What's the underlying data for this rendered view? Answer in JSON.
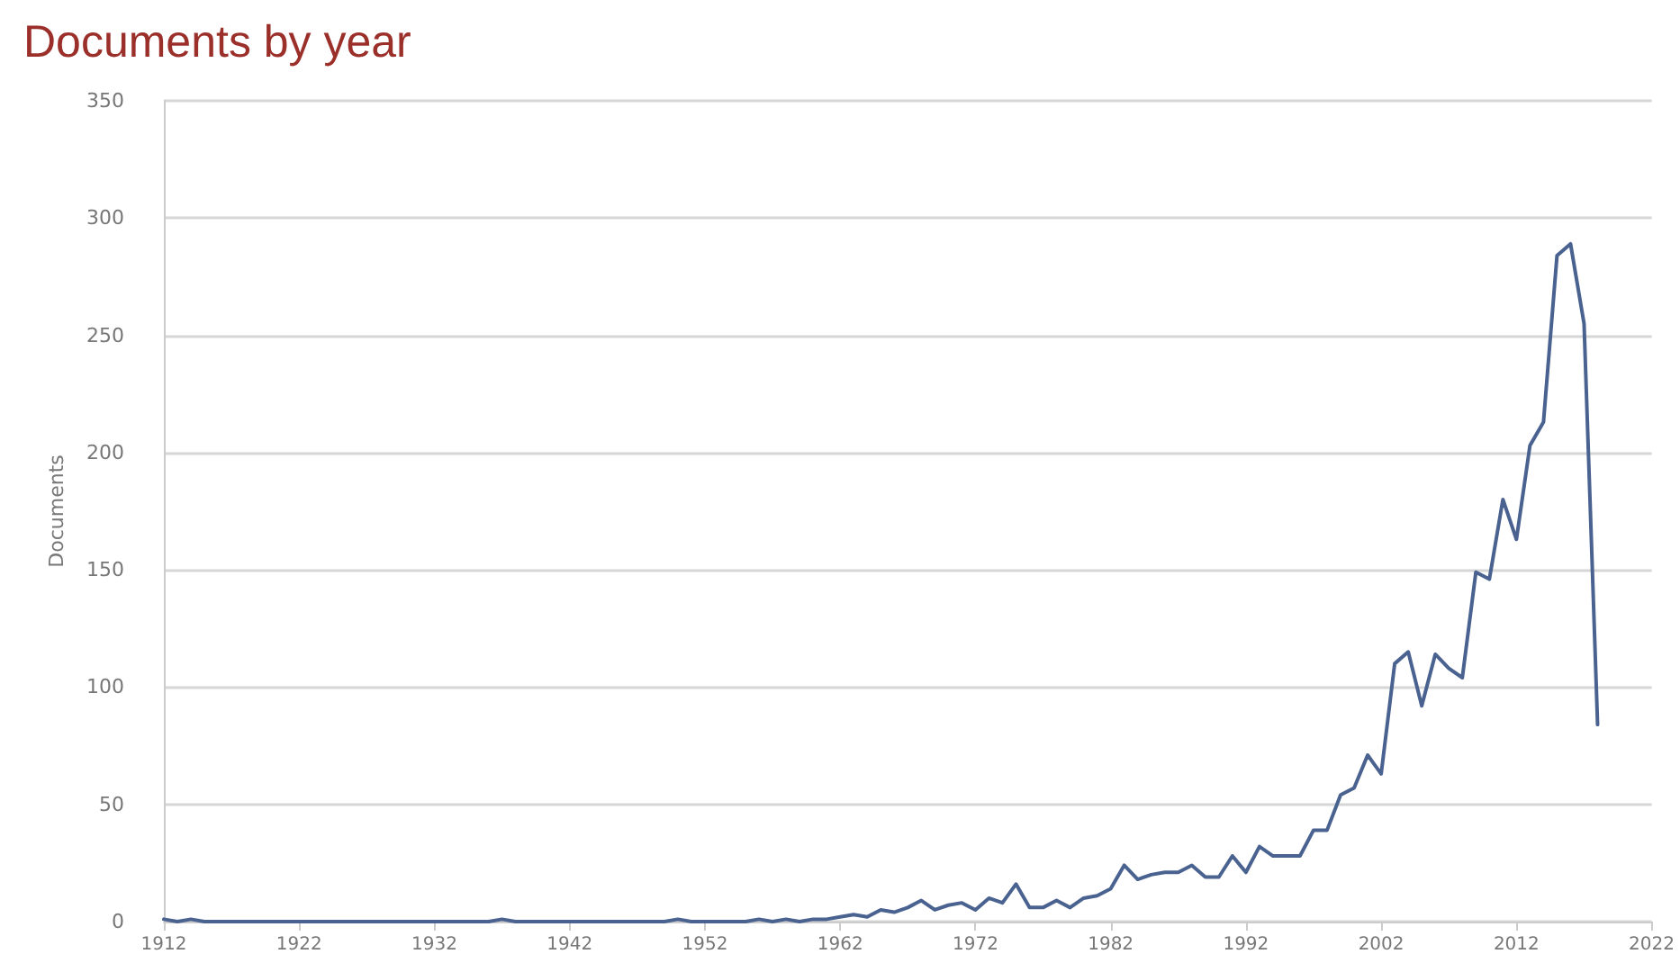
{
  "chart_data": {
    "type": "line",
    "title": "Documents by year",
    "ylabel": "Documents",
    "x": [
      1912,
      1913,
      1914,
      1915,
      1916,
      1917,
      1918,
      1919,
      1920,
      1921,
      1922,
      1923,
      1924,
      1925,
      1926,
      1927,
      1928,
      1929,
      1930,
      1931,
      1932,
      1933,
      1934,
      1935,
      1936,
      1937,
      1938,
      1939,
      1940,
      1941,
      1942,
      1943,
      1944,
      1945,
      1946,
      1947,
      1948,
      1949,
      1950,
      1951,
      1952,
      1953,
      1954,
      1955,
      1956,
      1957,
      1958,
      1959,
      1960,
      1961,
      1962,
      1963,
      1964,
      1965,
      1966,
      1967,
      1968,
      1969,
      1970,
      1971,
      1972,
      1973,
      1974,
      1975,
      1976,
      1977,
      1978,
      1979,
      1980,
      1981,
      1982,
      1983,
      1984,
      1985,
      1986,
      1987,
      1988,
      1989,
      1990,
      1991,
      1992,
      1993,
      1994,
      1995,
      1996,
      1997,
      1998,
      1999,
      2000,
      2001,
      2002,
      2003,
      2004,
      2005,
      2006,
      2007,
      2008,
      2009,
      2010,
      2011,
      2012,
      2013,
      2014,
      2015,
      2016,
      2017,
      2018
    ],
    "series": [
      {
        "color": "#4a6290",
        "values": [
          1,
          0,
          1,
          0,
          0,
          0,
          0,
          0,
          0,
          0,
          0,
          0,
          0,
          0,
          0,
          0,
          0,
          0,
          0,
          0,
          0,
          0,
          0,
          0,
          0,
          1,
          0,
          0,
          0,
          0,
          0,
          0,
          0,
          0,
          0,
          0,
          0,
          0,
          1,
          0,
          0,
          0,
          0,
          0,
          1,
          0,
          1,
          0,
          1,
          1,
          2,
          3,
          2,
          5,
          4,
          6,
          9,
          5,
          7,
          8,
          5,
          10,
          8,
          16,
          6,
          6,
          9,
          6,
          10,
          11,
          14,
          24,
          18,
          20,
          21,
          21,
          24,
          19,
          19,
          28,
          21,
          32,
          28,
          28,
          28,
          39,
          39,
          54,
          57,
          71,
          63,
          110,
          115,
          92,
          114,
          108,
          104,
          149,
          146,
          180,
          163,
          203,
          213,
          284,
          289,
          255,
          84
        ]
      }
    ],
    "xlim": [
      1912,
      2022
    ],
    "xticks": [
      1912,
      1922,
      1932,
      1942,
      1952,
      1962,
      1972,
      1982,
      1992,
      2002,
      2012,
      2022
    ],
    "ylim": [
      0,
      350
    ],
    "yticks": [
      0,
      50,
      100,
      150,
      200,
      250,
      300,
      350
    ],
    "grid": "y",
    "marker": "none",
    "line_style": "solid"
  }
}
